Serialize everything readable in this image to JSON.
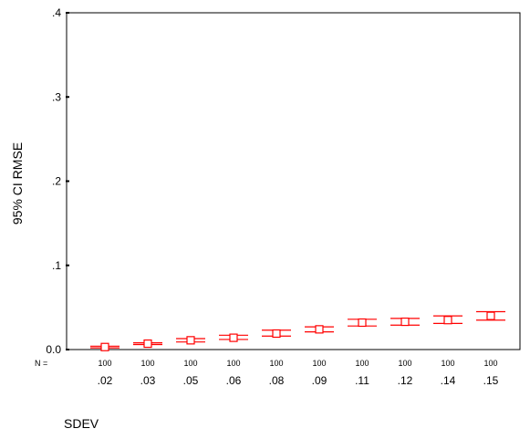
{
  "chart_data": {
    "type": "errorbar",
    "xlabel": "SDEV",
    "ylabel": "95% CI RMSE",
    "ylim": [
      0,
      0.4
    ],
    "yticks": [
      {
        "value": 0.0,
        "label": "0.0"
      },
      {
        "value": 0.1,
        "label": ".1"
      },
      {
        "value": 0.2,
        "label": ".2"
      },
      {
        "value": 0.3,
        "label": ".3"
      },
      {
        "value": 0.4,
        "label": ".4"
      }
    ],
    "n_prefix": "N =",
    "categories": [
      ".02",
      ".03",
      ".05",
      ".06",
      ".08",
      ".09",
      ".11",
      ".12",
      ".14",
      ".15"
    ],
    "n_values": [
      "100",
      "100",
      "100",
      "100",
      "100",
      "100",
      "100",
      "100",
      "100",
      "100"
    ],
    "mean": [
      0.003,
      0.007,
      0.011,
      0.014,
      0.019,
      0.024,
      0.032,
      0.033,
      0.035,
      0.04
    ],
    "lower": [
      0.002,
      0.006,
      0.009,
      0.012,
      0.016,
      0.021,
      0.028,
      0.029,
      0.031,
      0.035
    ],
    "upper": [
      0.004,
      0.008,
      0.013,
      0.017,
      0.023,
      0.027,
      0.036,
      0.037,
      0.04,
      0.045
    ],
    "grid": false,
    "marker_color": "#ff0000"
  }
}
